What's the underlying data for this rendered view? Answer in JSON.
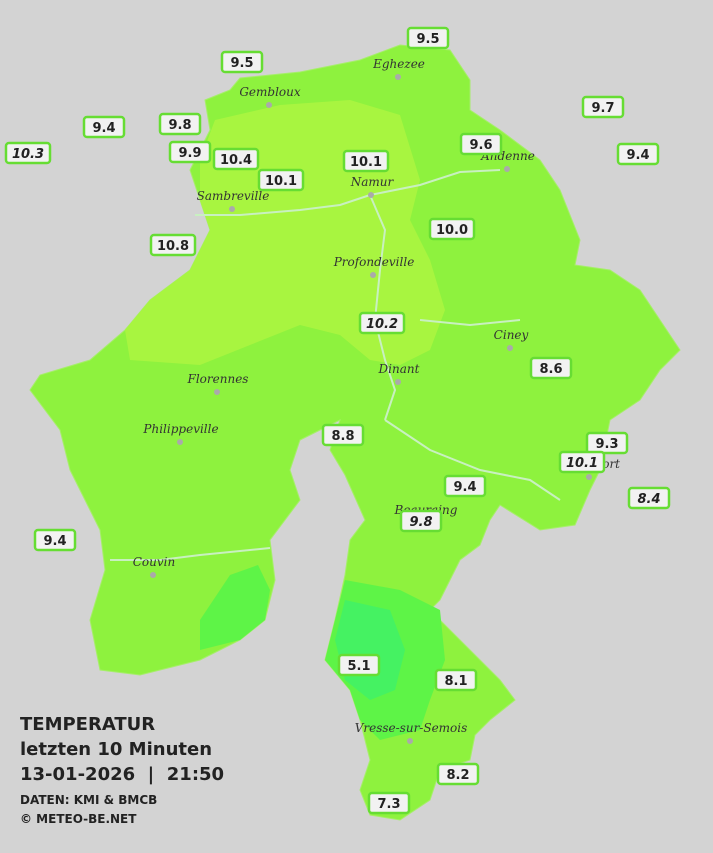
{
  "header": {
    "title": "TEMPERATUR",
    "subtitle": "letzten 10 Minuten",
    "datetime": "13-01-2026  |  21:50",
    "source": "DATEN: KMI & BMCB",
    "copyright": "© METEO-BE.NET"
  },
  "cities": [
    "Eghezee",
    "Gembloux",
    "Andenne",
    "Namur",
    "Sambreville",
    "Profondeville",
    "Ciney",
    "Dinant",
    "Florennes",
    "Philippeville",
    "Rochefort",
    "Beauraing",
    "Couvin",
    "Vresse-sur-Semois"
  ],
  "stations": [
    "9.5",
    "9.5",
    "9.4",
    "9.8",
    "10.3",
    "9.9",
    "10.4",
    "10.1",
    "10.1",
    "9.6",
    "9.7",
    "9.4",
    "10.8",
    "10.0",
    "10.2",
    "8.6",
    "8.8",
    "9.3",
    "10.1",
    "9.4",
    "9.8",
    "8.4",
    "9.4",
    "5.1",
    "8.1",
    "8.2",
    "7.3"
  ]
}
